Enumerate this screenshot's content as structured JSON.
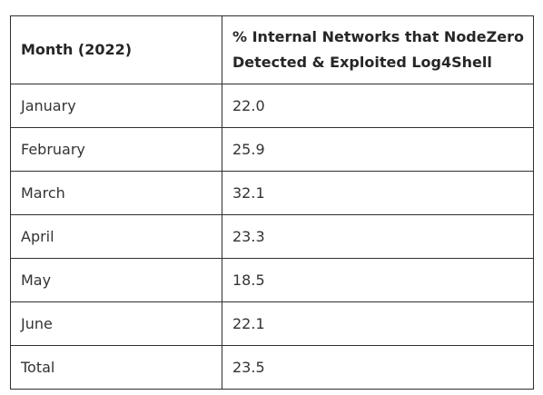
{
  "table": {
    "headers": [
      "Month (2022)",
      "% Internal Networks that NodeZero Detected & Exploited Log4Shell"
    ],
    "rows": [
      [
        "January",
        "22.0"
      ],
      [
        "February",
        "25.9"
      ],
      [
        "March",
        "32.1"
      ],
      [
        "April",
        "23.3"
      ],
      [
        "May",
        "18.5"
      ],
      [
        "June",
        "22.1"
      ],
      [
        "Total",
        "23.5"
      ]
    ]
  }
}
